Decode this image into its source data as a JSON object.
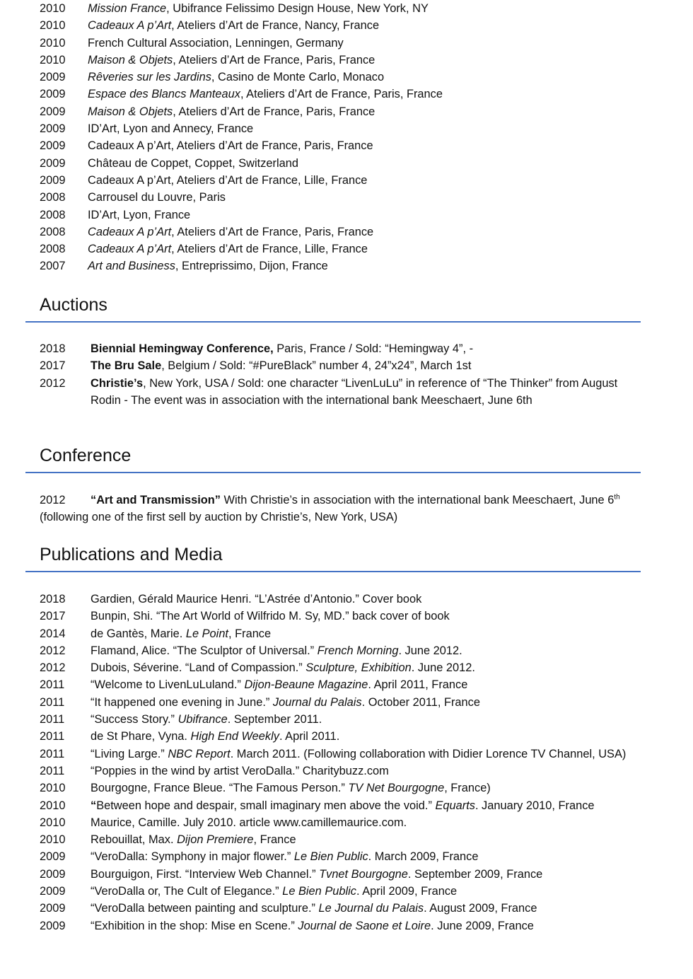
{
  "accent_color": "#4472c4",
  "exhibitions": [
    {
      "year": "2010",
      "parts": [
        {
          "t": "Mission France",
          "s": "i"
        },
        {
          "t": ", Ubifrance Felissimo Design House, New York, NY"
        }
      ]
    },
    {
      "year": "2010",
      "parts": [
        {
          "t": "Cadeaux A p’Art",
          "s": "i"
        },
        {
          "t": ", Ateliers d’Art de France, Nancy, France"
        }
      ]
    },
    {
      "year": "2010",
      "parts": [
        {
          "t": "French Cultural Association, Lenningen, Germany"
        }
      ]
    },
    {
      "year": "2010",
      "parts": [
        {
          "t": "Maison & Objets",
          "s": "i"
        },
        {
          "t": ", Ateliers d’Art de France, Paris, France"
        }
      ]
    },
    {
      "year": "2009",
      "parts": [
        {
          "t": "Rêveries sur les Jardins",
          "s": "i"
        },
        {
          "t": ", Casino de Monte Carlo, Monaco"
        }
      ]
    },
    {
      "year": "2009",
      "parts": [
        {
          "t": "Espace des Blancs Manteaux",
          "s": "i"
        },
        {
          "t": ", Ateliers d’Art de France, Paris, France"
        }
      ]
    },
    {
      "year": "2009",
      "parts": [
        {
          "t": "Maison & Objets",
          "s": "i"
        },
        {
          "t": ", Ateliers d’Art de France, Paris, France"
        }
      ]
    },
    {
      "year": "2009",
      "parts": [
        {
          "t": "ID’Art, Lyon and Annecy, France"
        }
      ]
    },
    {
      "year": "2009",
      "parts": [
        {
          "t": "Cadeaux A p’Art, Ateliers d’Art de France, Paris, France"
        }
      ]
    },
    {
      "year": "2009",
      "parts": [
        {
          "t": "Château de Coppet, Coppet, Switzerland"
        }
      ]
    },
    {
      "year": "2009",
      "parts": [
        {
          "t": "Cadeaux A p’Art, Ateliers d’Art de France, Lille, France"
        }
      ]
    },
    {
      "year": "2008",
      "parts": [
        {
          "t": "Carrousel du Louvre, Paris"
        }
      ]
    },
    {
      "year": "2008",
      "parts": [
        {
          "t": "ID’Art, Lyon, France"
        }
      ]
    },
    {
      "year": "2008",
      "parts": [
        {
          "t": "Cadeaux A p’Art",
          "s": "i"
        },
        {
          "t": ", Ateliers d’Art de France, Paris, France"
        }
      ]
    },
    {
      "year": "2008",
      "parts": [
        {
          "t": "Cadeaux A p’Art",
          "s": "i"
        },
        {
          "t": ", Ateliers d’Art de France, Lille, France"
        }
      ]
    },
    {
      "year": "2007",
      "parts": [
        {
          "t": "Art and Business",
          "s": "i"
        },
        {
          "t": ", Entreprissimo, Dijon, France"
        }
      ]
    }
  ],
  "auctions": {
    "heading": "Auctions",
    "items": [
      {
        "year": "2018",
        "parts": [
          {
            "t": "Biennial Hemingway Conference,",
            "s": "b"
          },
          {
            "t": " Paris, France  / Sold: “Hemingway 4”,   -"
          }
        ]
      },
      {
        "year": "2017",
        "parts": [
          {
            "t": "The Bru Sale",
            "s": "b"
          },
          {
            "t": ", Belgium / Sold: “#PureBlack” number 4, 24”x24”, March 1st"
          }
        ]
      },
      {
        "year": "2012",
        "parts": [
          {
            "t": "Christie’s",
            "s": "b"
          },
          {
            "t": ", New York, USA  / Sold: one character “LivenLuLu” in reference of “The Thinker” from August Rodin - The event was in association with the international bank Meeschaert, June 6th"
          }
        ]
      }
    ]
  },
  "conference": {
    "heading": "Conference",
    "year": "2012",
    "title": "“Art and Transmission”",
    "text1": " With Christie’s in association with the international bank Meeschaert, June 6",
    "sup": "th",
    "text2": " (following one of the first sell by auction by Christie’s, New York, USA)"
  },
  "publications": {
    "heading": "Publications and Media",
    "items": [
      {
        "year": "2018",
        "parts": [
          {
            "t": "Gardien, Gérald Maurice Henri. “L’Astrée d’Antonio.” Cover book"
          }
        ]
      },
      {
        "year": "2017",
        "parts": [
          {
            "t": "Bunpin, Shi.  “The Art World of Wilfrido M. Sy, MD.”  back cover of book"
          }
        ]
      },
      {
        "year": "2014",
        "parts": [
          {
            "t": "de Gantès, Marie. "
          },
          {
            "t": "Le Point",
            "s": "i"
          },
          {
            "t": ", France"
          }
        ]
      },
      {
        "year": "2012",
        "parts": [
          {
            "t": "Flamand, Alice. “The Sculptor of Universal.” "
          },
          {
            "t": "French Morning",
            "s": "i"
          },
          {
            "t": ". June 2012."
          }
        ]
      },
      {
        "year": "2012",
        "parts": [
          {
            "t": "Dubois, Séverine. “Land of Compassion.” "
          },
          {
            "t": "Sculpture, Exhibition",
            "s": "i"
          },
          {
            "t": ". June 2012."
          }
        ]
      },
      {
        "year": "2011",
        "parts": [
          {
            "t": "“Welcome to LivenLuLuland.” "
          },
          {
            "t": "Dijon-Beaune Magazine",
            "s": "i"
          },
          {
            "t": ". April 2011, France"
          }
        ]
      },
      {
        "year": "2011",
        "parts": [
          {
            "t": "“It happened one evening in June.” "
          },
          {
            "t": "Journal du Palais",
            "s": "i"
          },
          {
            "t": ". October 2011, France"
          }
        ]
      },
      {
        "year": "2011",
        "parts": [
          {
            "t": "“Success Story.” "
          },
          {
            "t": "Ubifrance",
            "s": "i"
          },
          {
            "t": ". September 2011."
          }
        ]
      },
      {
        "year": "2011",
        "parts": [
          {
            "t": "de St Phare, Vyna. "
          },
          {
            "t": "High End Weekly",
            "s": "i"
          },
          {
            "t": ". April 2011."
          }
        ]
      },
      {
        "year": "2011",
        "parts": [
          {
            "t": "“Living Large.” "
          },
          {
            "t": "NBC Report",
            "s": "i"
          },
          {
            "t": ". March 2011. (Following collaboration with Didier Lorence TV Channel, USA)"
          }
        ]
      },
      {
        "year": "2011",
        "parts": [
          {
            "t": "“Poppies in the wind by artist VeroDalla.” Charitybuzz.com"
          }
        ]
      },
      {
        "year": "2010",
        "parts": [
          {
            "t": "Bourgogne, France Bleue. “The Famous Person.” "
          },
          {
            "t": "TV Net Bourgogne",
            "s": "i"
          },
          {
            "t": ", France)"
          }
        ]
      },
      {
        "year": "2010",
        "parts": [
          {
            "t": "“",
            "s": "b"
          },
          {
            "t": "Between hope and despair, small imaginary men above the void.” "
          },
          {
            "t": "Equarts",
            "s": "i"
          },
          {
            "t": ". January 2010, France"
          }
        ]
      },
      {
        "year": "2010",
        "parts": [
          {
            "t": "Maurice, Camille. July 2010.  article www.camillemaurice.com."
          }
        ]
      },
      {
        "year": "2010",
        "parts": [
          {
            "t": "Rebouillat, Max. "
          },
          {
            "t": "Dijon Premiere",
            "s": "i"
          },
          {
            "t": ", France"
          }
        ]
      },
      {
        "year": "2009",
        "parts": [
          {
            "t": "“VeroDalla: Symphony in major flower.” "
          },
          {
            "t": "Le Bien Public",
            "s": "i"
          },
          {
            "t": ". March 2009, France"
          }
        ]
      },
      {
        "year": "2009",
        "parts": [
          {
            "t": "Bourguigon, First. “Interview Web Channel.” "
          },
          {
            "t": "Tvnet Bourgogne",
            "s": "i"
          },
          {
            "t": ". September 2009, France"
          }
        ]
      },
      {
        "year": "2009",
        "parts": [
          {
            "t": "“VeroDalla or, The Cult of Elegance.” "
          },
          {
            "t": "Le Bien Public",
            "s": "i"
          },
          {
            "t": ". April 2009, France"
          }
        ]
      },
      {
        "year": "2009",
        "parts": [
          {
            "t": "“VeroDalla between painting and sculpture.” "
          },
          {
            "t": "Le Journal du Palais",
            "s": "i"
          },
          {
            "t": ". August 2009, France"
          }
        ]
      },
      {
        "year": "2009",
        "parts": [
          {
            "t": "“Exhibition in the shop: Mise en Scene.” "
          },
          {
            "t": "Journal de Saone et Loire",
            "s": "i"
          },
          {
            "t": ". June 2009, France"
          }
        ]
      }
    ]
  }
}
